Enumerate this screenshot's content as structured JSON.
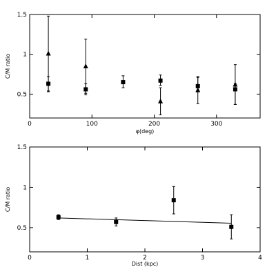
{
  "chart_data": [
    {
      "type": "scatter",
      "title": "",
      "xlabel": "φ(deg)",
      "ylabel": "C/M ratio",
      "xlim": [
        0,
        370
      ],
      "ylim": [
        0.2,
        1.5
      ],
      "x_ticks": [
        0,
        100,
        200,
        300
      ],
      "x_tick_labels": [
        "0",
        "100",
        "200",
        "300"
      ],
      "y_ticks": [
        0.5,
        1,
        1.5
      ],
      "y_tick_labels": [
        "0.5",
        "1",
        "1.5"
      ],
      "grid": false,
      "series": [
        {
          "marker": "square",
          "points": [
            {
              "x": 30,
              "y": 0.63,
              "err_lo": 0.1,
              "err_hi": 0.09
            },
            {
              "x": 90,
              "y": 0.56,
              "err_lo": 0.07,
              "err_hi": 0.07
            },
            {
              "x": 150,
              "y": 0.65,
              "err_lo": 0.07,
              "err_hi": 0.08
            },
            {
              "x": 210,
              "y": 0.67,
              "err_lo": 0.06,
              "err_hi": 0.07
            },
            {
              "x": 270,
              "y": 0.6,
              "err_lo": 0.05,
              "err_hi": 0.11
            },
            {
              "x": 330,
              "y": 0.56,
              "err_lo": 0.19,
              "err_hi": 0.07
            }
          ]
        },
        {
          "marker": "triangle",
          "points": [
            {
              "x": 30,
              "y": 1.01,
              "err_lo": 0.47,
              "err_hi": 0.47
            },
            {
              "x": 90,
              "y": 0.85,
              "err_lo": 0.34,
              "err_hi": 0.34
            },
            {
              "x": 210,
              "y": 0.41,
              "err_lo": 0.17,
              "err_hi": 0.17
            },
            {
              "x": 270,
              "y": 0.55,
              "err_lo": 0.17,
              "err_hi": 0.17
            },
            {
              "x": 330,
              "y": 0.62,
              "err_lo": 0.25,
              "err_hi": 0.25
            }
          ]
        }
      ]
    },
    {
      "type": "scatter",
      "title": "",
      "xlabel": "Dist (kpc)",
      "ylabel": "C/M ratio",
      "xlim": [
        0,
        4
      ],
      "ylim": [
        0.2,
        1.5
      ],
      "x_ticks": [
        0,
        1,
        2,
        3,
        4
      ],
      "x_tick_labels": [
        "0",
        "1",
        "2",
        "3",
        "4"
      ],
      "y_ticks": [
        0.5,
        1,
        1.5
      ],
      "y_tick_labels": [
        "0.5",
        "1",
        "1.5"
      ],
      "grid": false,
      "series": [
        {
          "marker": "square",
          "points": [
            {
              "x": 0.5,
              "y": 0.63,
              "err_lo": 0.03,
              "err_hi": 0.03
            },
            {
              "x": 1.5,
              "y": 0.57,
              "err_lo": 0.05,
              "err_hi": 0.05
            },
            {
              "x": 2.5,
              "y": 0.84,
              "err_lo": 0.17,
              "err_hi": 0.17
            },
            {
              "x": 3.5,
              "y": 0.51,
              "err_lo": 0.15,
              "err_hi": 0.15
            }
          ]
        }
      ],
      "fit_line": {
        "x": [
          0.5,
          3.5
        ],
        "y": [
          0.62,
          0.555
        ]
      }
    }
  ]
}
